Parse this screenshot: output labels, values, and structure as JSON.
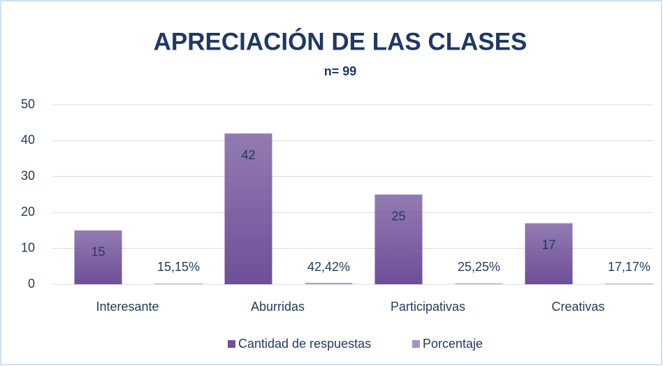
{
  "chart_data": {
    "type": "bar",
    "title": "APRECIACIÓN DE LAS CLASES",
    "subtitle": "n= 99",
    "categories": [
      "Interesante",
      "Aburridas",
      "Participativas",
      "Creativas"
    ],
    "series": [
      {
        "name": "Cantidad de respuestas",
        "color": "#6e4f98",
        "values": [
          15,
          42,
          25,
          17
        ]
      },
      {
        "name": "Porcentaje",
        "color": "#a294c6",
        "values": [
          0.1515,
          0.4242,
          0.2525,
          0.1717
        ],
        "value_labels": [
          "15,15%",
          "42,42%",
          "25,25%",
          "17,17%"
        ]
      }
    ],
    "ylim": [
      0,
      50
    ],
    "yticks": [
      0,
      10,
      20,
      30,
      40,
      50
    ],
    "grid": true,
    "legend": "bottom"
  }
}
